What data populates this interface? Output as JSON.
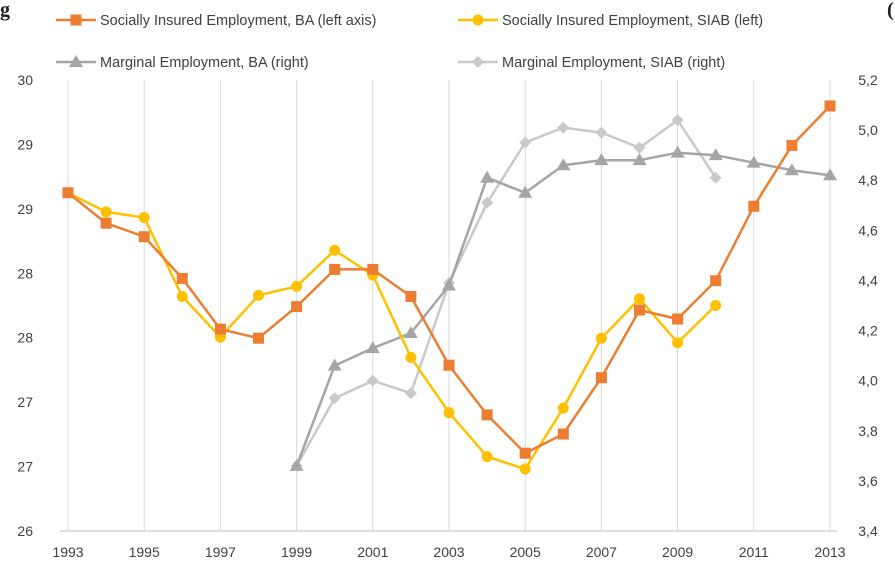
{
  "chart_data": {
    "type": "line",
    "title_fragment_left": "g",
    "title_fragment_right": "(",
    "x": [
      1993,
      1994,
      1995,
      1996,
      1997,
      1998,
      1999,
      2000,
      2001,
      2002,
      2003,
      2004,
      2005,
      2006,
      2007,
      2008,
      2009,
      2010,
      2011,
      2012,
      2013
    ],
    "x_ticks": [
      "1993",
      "1995",
      "1997",
      "1999",
      "2001",
      "2003",
      "2005",
      "2007",
      "2009",
      "2011",
      "2013"
    ],
    "y_left_ticks": [
      "30",
      "29",
      "29",
      "28",
      "28",
      "27",
      "27",
      "26"
    ],
    "y_right_ticks": [
      "5,2",
      "5,0",
      "4,8",
      "4,6",
      "4,4",
      "4,2",
      "4,0",
      "3,8",
      "3,6",
      "3,4"
    ],
    "ylim_left": [
      26.0,
      30.0
    ],
    "ylim_right": [
      3.4,
      5.2
    ],
    "grid": "vertical",
    "legend": "top",
    "series": [
      {
        "name": "Socially Insured Employment, BA (left axis)",
        "axis": "left",
        "color": "#ed7d31",
        "marker": "square",
        "values": [
          29.0,
          28.73,
          28.61,
          28.24,
          27.79,
          27.71,
          27.99,
          28.32,
          28.32,
          28.08,
          27.47,
          27.03,
          26.69,
          26.86,
          27.36,
          27.96,
          27.88,
          28.22,
          28.88,
          29.42,
          29.77
        ]
      },
      {
        "name": "Socially Insured Employment, SIAB (left)",
        "axis": "left",
        "color": "#ffc000",
        "marker": "circle",
        "values": [
          29.0,
          28.83,
          28.78,
          28.08,
          27.72,
          28.09,
          28.17,
          28.49,
          28.27,
          27.54,
          27.05,
          26.66,
          26.55,
          27.09,
          27.71,
          28.06,
          27.67,
          28.0,
          null,
          null,
          null
        ]
      },
      {
        "name": "Marginal Employment, BA (right)",
        "axis": "right",
        "color": "#a5a5a5",
        "marker": "triangle",
        "values": [
          null,
          null,
          null,
          null,
          null,
          null,
          3.66,
          4.06,
          4.13,
          4.19,
          4.38,
          4.81,
          4.75,
          4.86,
          4.88,
          4.88,
          4.91,
          4.9,
          4.87,
          4.84,
          4.82
        ]
      },
      {
        "name": "Marginal Employment, SIAB (right)",
        "axis": "right",
        "color": "#c9c9c9",
        "marker": "diamond",
        "values": [
          null,
          null,
          null,
          null,
          null,
          null,
          3.66,
          3.93,
          4.0,
          3.95,
          4.39,
          4.71,
          4.95,
          5.01,
          4.99,
          4.93,
          5.04,
          4.81,
          null,
          null,
          null
        ]
      }
    ]
  }
}
